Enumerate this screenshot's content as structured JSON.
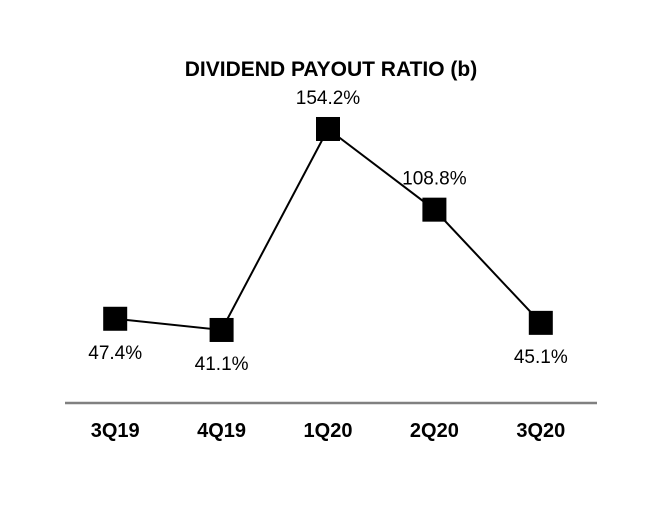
{
  "chart_data": {
    "type": "line",
    "title": "DIVIDEND PAYOUT RATIO (b)",
    "categories": [
      "3Q19",
      "4Q19",
      "1Q20",
      "2Q20",
      "3Q20"
    ],
    "values": [
      47.4,
      41.1,
      154.2,
      108.8,
      45.1
    ],
    "point_labels": [
      "47.4%",
      "41.1%",
      "154.2%",
      "108.8%",
      "45.1%"
    ],
    "label_positions": [
      "below",
      "below",
      "above",
      "above",
      "below"
    ],
    "xlabel": "",
    "ylabel": "",
    "ylim": [
      0,
      176
    ],
    "grid": false,
    "legend": "none",
    "marker_shape": "square",
    "colors": {
      "line": "#000000",
      "marker": "#000000",
      "axis_line": "#808080",
      "text": "#000000",
      "background": "#ffffff"
    }
  }
}
